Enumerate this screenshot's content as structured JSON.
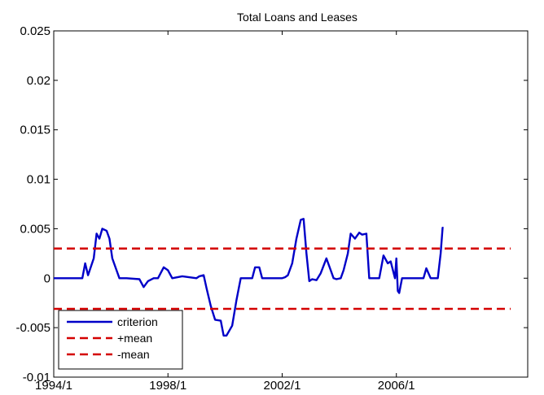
{
  "chart_data": {
    "type": "line",
    "title": "Total Loans and Leases",
    "xlabel": "",
    "ylabel": "",
    "xlim": [
      1994.0,
      2010.6
    ],
    "ylim": [
      -0.01,
      0.025
    ],
    "xticks": [
      {
        "value": 1994.0,
        "label": "1994/1"
      },
      {
        "value": 1998.0,
        "label": "1998/1"
      },
      {
        "value": 2002.0,
        "label": "2002/1"
      },
      {
        "value": 2006.0,
        "label": "2006/1"
      }
    ],
    "yticks": [
      {
        "value": -0.01,
        "label": "-0.01"
      },
      {
        "value": -0.005,
        "label": "-0.005"
      },
      {
        "value": 0,
        "label": "0"
      },
      {
        "value": 0.005,
        "label": "0.005"
      },
      {
        "value": 0.01,
        "label": "0.01"
      },
      {
        "value": 0.015,
        "label": "0.015"
      },
      {
        "value": 0.02,
        "label": "0.02"
      },
      {
        "value": 0.025,
        "label": "0.025"
      }
    ],
    "grid": false,
    "legend": "bottom-left",
    "series": [
      {
        "name": "criterion",
        "color": "#0000c8",
        "style": "solid",
        "x": [
          1994.0,
          1995.0,
          1995.1,
          1995.2,
          1995.4,
          1995.5,
          1995.6,
          1995.7,
          1995.85,
          1995.95,
          1996.05,
          1996.2,
          1996.3,
          1996.45,
          1996.55,
          1997.0,
          1997.15,
          1997.3,
          1997.5,
          1997.65,
          1997.85,
          1998.0,
          1998.15,
          1998.5,
          1999.0,
          1999.1,
          1999.25,
          1999.35,
          1999.5,
          1999.65,
          1999.85,
          1999.95,
          2000.05,
          2000.25,
          2000.4,
          2000.55,
          2000.65,
          2000.75,
          2000.95,
          2001.05,
          2001.2,
          2001.3,
          2001.4,
          2002.0,
          2002.1,
          2002.2,
          2002.35,
          2002.5,
          2002.65,
          2002.75,
          2002.85,
          2002.95,
          2003.05,
          2003.2,
          2003.35,
          2003.55,
          2003.7,
          2003.8,
          2003.9,
          2004.05,
          2004.15,
          2004.3,
          2004.4,
          2004.55,
          2004.7,
          2004.8,
          2004.95,
          2005.05,
          2005.15,
          2005.3,
          2005.4,
          2005.55,
          2005.7,
          2005.8,
          2005.95,
          2006.0,
          2006.05,
          2006.1,
          2006.2,
          2006.5,
          2006.7,
          2006.95,
          2007.05,
          2007.2,
          2007.35,
          2007.45,
          2007.55,
          2007.62,
          2007.65
        ],
        "values": [
          0,
          0,
          0.0015,
          0.0003,
          0.002,
          0.0045,
          0.004,
          0.005,
          0.0048,
          0.004,
          0.002,
          0.0008,
          0,
          0,
          0,
          -0.0001,
          -0.0009,
          -0.0003,
          0,
          0,
          0.0011,
          0.0008,
          0,
          0.0002,
          0,
          0.0002,
          0.0003,
          -0.001,
          -0.0028,
          -0.0042,
          -0.0043,
          -0.0058,
          -0.0058,
          -0.0048,
          -0.0022,
          0,
          0,
          0,
          0,
          0.0011,
          0.0011,
          0,
          0,
          0,
          0.0001,
          0.0003,
          0.0015,
          0.004,
          0.0059,
          0.006,
          0.0025,
          -0.0003,
          -0.0001,
          -0.0002,
          0.0005,
          0.002,
          0.0008,
          0,
          -0.0001,
          0,
          0.0008,
          0.0025,
          0.0045,
          0.004,
          0.0046,
          0.0044,
          0.0045,
          0,
          0,
          0,
          0,
          0.0023,
          0.0015,
          0.0017,
          0,
          0.002,
          -0.0013,
          -0.0015,
          0,
          0,
          0,
          0,
          0.001,
          0,
          0,
          0,
          0.0025,
          0.0051,
          0.0051
        ]
      },
      {
        "name": "+mean",
        "color": "#d40000",
        "style": "dashed",
        "x": [
          1994.0,
          2010.0
        ],
        "values": [
          0.003,
          0.003
        ]
      },
      {
        "name": "-mean",
        "color": "#d40000",
        "style": "dashed",
        "x": [
          1994.0,
          2010.0
        ],
        "values": [
          -0.0031,
          -0.0031
        ]
      }
    ]
  }
}
